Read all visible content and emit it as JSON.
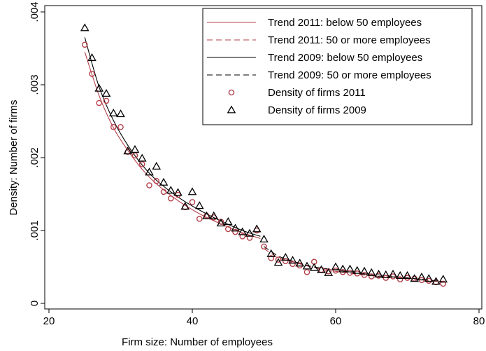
{
  "chart_data": {
    "type": "scatter",
    "xlabel": "Firm size: Number of employees",
    "ylabel": "Density: Number of firms",
    "xlim": [
      20,
      80
    ],
    "ylim": [
      0,
      0.004
    ],
    "x_ticks": [
      20,
      40,
      60,
      80
    ],
    "y_ticks": [
      0,
      0.001,
      0.002,
      0.003,
      0.004
    ],
    "x_tick_labels": [
      "20",
      "40",
      "60",
      "80"
    ],
    "y_tick_labels": [
      "0",
      ".001",
      ".002",
      ".003",
      ".004"
    ],
    "grid": false,
    "legend_position": "top-right",
    "legend": [
      {
        "label": "Trend 2011: below 50 employees",
        "kind": "line",
        "style": "solid",
        "color": "#b5404a"
      },
      {
        "label": "Trend 2011: 50 or more employees",
        "kind": "line",
        "style": "dashed",
        "color": "#b5404a"
      },
      {
        "label": "Trend 2009: below 50 employees",
        "kind": "line",
        "style": "solid",
        "color": "#000000"
      },
      {
        "label": "Trend 2009: 50 or more employees",
        "kind": "line",
        "style": "dashed",
        "color": "#000000"
      },
      {
        "label": "Density of firms 2011",
        "kind": "circle",
        "color": "#b5404a"
      },
      {
        "label": "Density of firms 2009",
        "kind": "triangle",
        "color": "#000000"
      }
    ],
    "series": [
      {
        "marker": "circle",
        "color": "#b5404a",
        "x": [
          25,
          26,
          27,
          28,
          29,
          30,
          31,
          32,
          33,
          34,
          35,
          36,
          37,
          38,
          39,
          40,
          41,
          42,
          43,
          44,
          45,
          46,
          47,
          48,
          49,
          50,
          51,
          52,
          53,
          54,
          55,
          56,
          57,
          58,
          59,
          60,
          61,
          62,
          63,
          64,
          65,
          66,
          67,
          68,
          69,
          70,
          71,
          72,
          73,
          74,
          75
        ],
        "y": [
          0.00355,
          0.00315,
          0.00275,
          0.00278,
          0.00242,
          0.00242,
          0.00208,
          0.00203,
          0.00191,
          0.00162,
          0.00168,
          0.00153,
          0.00144,
          0.00149,
          0.00132,
          0.00139,
          0.00116,
          0.0012,
          0.00118,
          0.00112,
          0.00102,
          0.00098,
          0.00092,
          0.0009,
          0.001,
          0.00078,
          0.00062,
          0.0006,
          0.00058,
          0.00054,
          0.00052,
          0.00043,
          0.00057,
          0.00046,
          0.00044,
          0.00045,
          0.00043,
          0.00042,
          0.00041,
          0.00039,
          0.00037,
          0.00038,
          0.00035,
          0.00037,
          0.00033,
          0.00035,
          0.00034,
          0.00032,
          0.00031,
          0.00029,
          0.00027
        ]
      },
      {
        "marker": "triangle",
        "color": "#000000",
        "x": [
          25,
          26,
          27,
          28,
          29,
          30,
          31,
          32,
          33,
          34,
          35,
          36,
          37,
          38,
          39,
          40,
          41,
          42,
          43,
          44,
          45,
          46,
          47,
          48,
          49,
          50,
          51,
          52,
          53,
          54,
          55,
          56,
          57,
          58,
          59,
          60,
          61,
          62,
          63,
          64,
          65,
          66,
          67,
          68,
          69,
          70,
          71,
          72,
          73,
          74,
          75
        ],
        "y": [
          0.00378,
          0.00337,
          0.00295,
          0.00288,
          0.00261,
          0.0026,
          0.00209,
          0.00211,
          0.00199,
          0.0018,
          0.00188,
          0.00166,
          0.00155,
          0.00152,
          0.00133,
          0.00153,
          0.00134,
          0.0012,
          0.0012,
          0.0011,
          0.00112,
          0.00103,
          0.00098,
          0.00096,
          0.00102,
          0.00088,
          0.00068,
          0.00056,
          0.00063,
          0.00059,
          0.00055,
          0.00051,
          0.00049,
          0.00046,
          0.00042,
          0.0005,
          0.00047,
          0.00047,
          0.00045,
          0.00044,
          0.00042,
          0.0004,
          0.00039,
          0.0004,
          0.00038,
          0.00038,
          0.00034,
          0.00036,
          0.00034,
          0.0003,
          0.00033
        ]
      },
      {
        "kind": "trend",
        "style": "solid",
        "color": "#b5404a",
        "x": [
          25,
          27,
          29,
          31,
          33,
          35,
          38,
          41,
          44,
          47,
          49.5
        ],
        "y": [
          0.00345,
          0.00285,
          0.00241,
          0.0021,
          0.00184,
          0.00164,
          0.00141,
          0.00123,
          0.00109,
          0.00097,
          0.00089
        ]
      },
      {
        "kind": "trend",
        "style": "dashed",
        "color": "#b5404a",
        "x": [
          50,
          52,
          54,
          57,
          60,
          63,
          66,
          70,
          75
        ],
        "y": [
          0.00075,
          0.00063,
          0.00057,
          0.00049,
          0.00044,
          0.0004,
          0.00037,
          0.00034,
          0.00029
        ]
      },
      {
        "kind": "trend",
        "style": "solid",
        "color": "#000000",
        "x": [
          25,
          27,
          29,
          31,
          33,
          35,
          38,
          41,
          44,
          47,
          49.5
        ],
        "y": [
          0.00365,
          0.00297,
          0.00251,
          0.00217,
          0.0019,
          0.00169,
          0.00146,
          0.00128,
          0.00113,
          0.001,
          0.00092
        ]
      },
      {
        "kind": "trend",
        "style": "dashed",
        "color": "#000000",
        "x": [
          50,
          52,
          54,
          57,
          60,
          63,
          66,
          70,
          75
        ],
        "y": [
          0.00078,
          0.00065,
          0.00058,
          0.0005,
          0.00046,
          0.00042,
          0.00039,
          0.00035,
          0.0003
        ]
      }
    ]
  }
}
